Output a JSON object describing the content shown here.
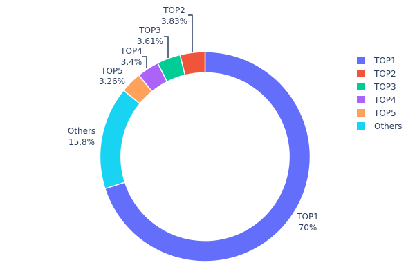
{
  "chart_data": {
    "type": "pie",
    "hole": 0.8,
    "direction": "clockwise",
    "slices": [
      {
        "label": "TOP1",
        "value": 70,
        "text": "70%",
        "color": "#636efa"
      },
      {
        "label": "Others",
        "value": 15.8,
        "text": "15.8%",
        "color": "#19d3f3"
      },
      {
        "label": "TOP5",
        "value": 3.26,
        "text": "3.26%",
        "color": "#FFA15A"
      },
      {
        "label": "TOP4",
        "value": 3.4,
        "text": "3.4%",
        "color": "#ab63fa"
      },
      {
        "label": "TOP3",
        "value": 3.61,
        "text": "3.61%",
        "color": "#00cc96"
      },
      {
        "label": "TOP2",
        "value": 3.83,
        "text": "3.83%",
        "color": "#EF553B"
      }
    ],
    "legend": {
      "placement": "right",
      "entries": [
        {
          "label": "TOP1",
          "color": "#636efa"
        },
        {
          "label": "TOP2",
          "color": "#EF553B"
        },
        {
          "label": "TOP3",
          "color": "#00cc96"
        },
        {
          "label": "TOP4",
          "color": "#ab63fa"
        },
        {
          "label": "TOP5",
          "color": "#FFA15A"
        },
        {
          "label": "Others",
          "color": "#19d3f3"
        }
      ]
    }
  }
}
